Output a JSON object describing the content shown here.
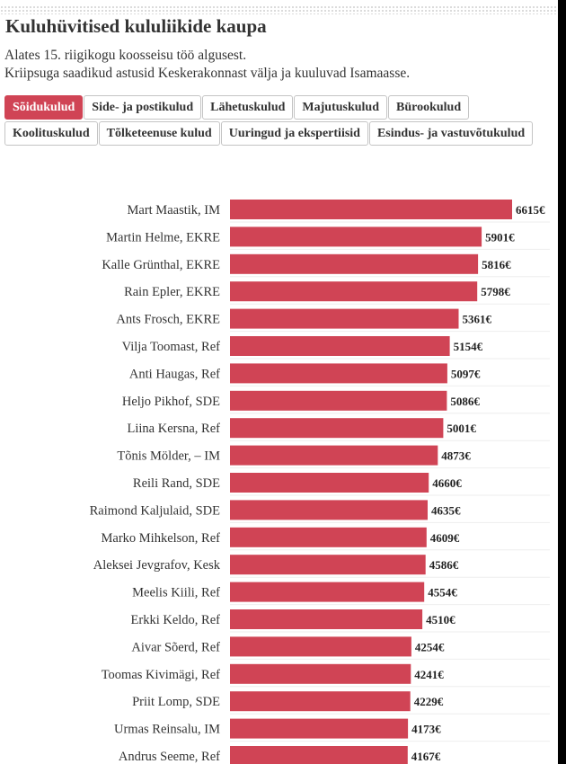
{
  "page": {
    "title": "Kuluhüvitised kululiikide kaupa",
    "subtitle_line1": "Alates 15. riigikogu koosseisu töö algusest.",
    "subtitle_line2": "Kriipsuga saadikud astusid Keskerakonnast välja ja kuuluvad Isamaasse."
  },
  "tabs": [
    {
      "label": "Sõidukulud",
      "active": true
    },
    {
      "label": "Side- ja postikulud",
      "active": false
    },
    {
      "label": "Lähetuskulud",
      "active": false
    },
    {
      "label": "Majutuskulud",
      "active": false
    },
    {
      "label": "Bürookulud",
      "active": false
    },
    {
      "label": "Koolituskulud",
      "active": false
    },
    {
      "label": "Tõlketeenuse kulud",
      "active": false
    },
    {
      "label": "Uuringud ja ekspertiisid",
      "active": false
    },
    {
      "label": "Esindus- ja vastuvõtukulud",
      "active": false
    }
  ],
  "colors": {
    "accent": "#d04455",
    "bar": "#d04455"
  },
  "chart_data": {
    "type": "bar",
    "orientation": "horizontal",
    "unit": "€",
    "categories": [
      "Mart Maastik, IM",
      "Martin Helme, EKRE",
      "Kalle Grünthal, EKRE",
      "Rain Epler, EKRE",
      "Ants Frosch, EKRE",
      "Vilja Toomast, Ref",
      "Anti Haugas, Ref",
      "Heljo Pikhof, SDE",
      "Liina Kersna, Ref",
      "Tõnis Mölder, – IM",
      "Reili Rand, SDE",
      "Raimond Kaljulaid, SDE",
      "Marko Mihkelson, Ref",
      "Aleksei Jevgrafov, Kesk",
      "Meelis Kiili, Ref",
      "Erkki Keldo, Ref",
      "Aivar Sõerd, Ref",
      "Toomas Kivimägi, Ref",
      "Priit Lomp, SDE",
      "Urmas Reinsalu, IM",
      "Andrus Seeme, Ref"
    ],
    "values": [
      6615,
      5901,
      5816,
      5798,
      5361,
      5154,
      5097,
      5086,
      5001,
      4873,
      4660,
      4635,
      4609,
      4586,
      4554,
      4510,
      4254,
      4241,
      4229,
      4173,
      4167
    ],
    "value_labels": [
      "6615€",
      "5901€",
      "5816€",
      "5798€",
      "5361€",
      "5154€",
      "5097€",
      "5086€",
      "5001€",
      "4873€",
      "4660€",
      "4635€",
      "4609€",
      "4586€",
      "4554€",
      "4510€",
      "4254€",
      "4241€",
      "4229€",
      "4173€",
      "4167€"
    ],
    "xlim": [
      0,
      6615
    ],
    "grid": true
  }
}
